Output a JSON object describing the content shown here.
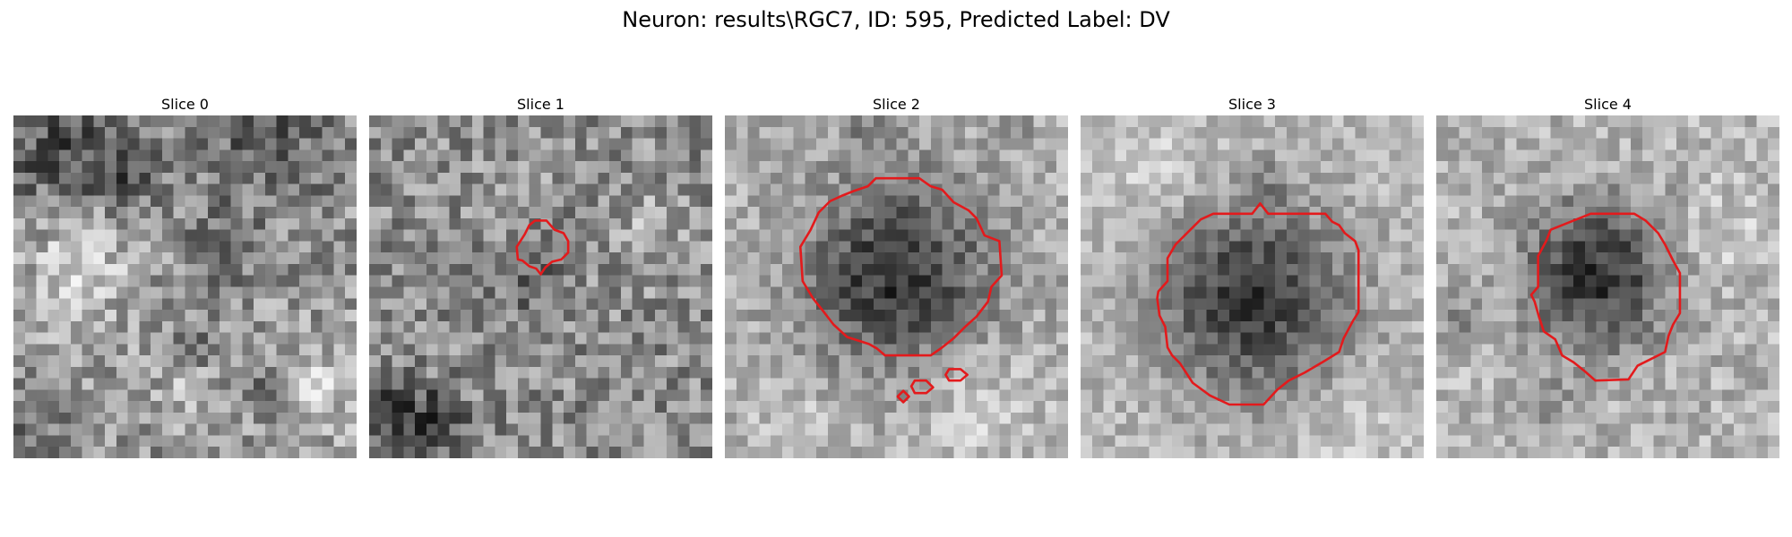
{
  "figure": {
    "title": "Neuron: results\\RGC7, ID: 595, Predicted Label: DV"
  },
  "colors": {
    "contour": "#e31a1c",
    "background": "#ffffff"
  },
  "slices": [
    {
      "label": "Slice 0",
      "has_contour": false
    },
    {
      "label": "Slice 1",
      "has_contour": true
    },
    {
      "label": "Slice 2",
      "has_contour": true
    },
    {
      "label": "Slice 3",
      "has_contour": true
    },
    {
      "label": "Slice 4",
      "has_contour": true
    }
  ]
}
